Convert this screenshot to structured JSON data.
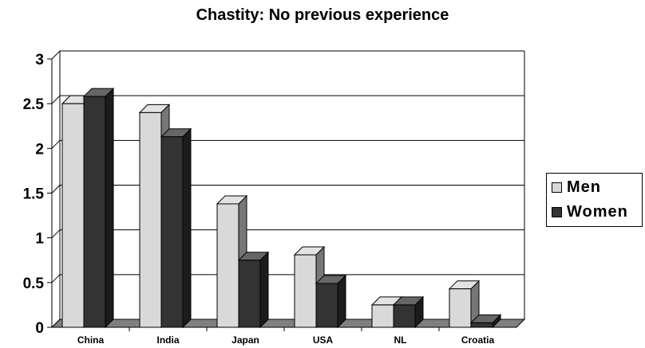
{
  "chart_data": {
    "type": "bar",
    "title": "Chastity: No previous experience",
    "categories": [
      "China",
      "India",
      "Japan",
      "USA",
      "NL",
      "Croatia"
    ],
    "series": [
      {
        "name": "Men",
        "values": [
          2.5,
          2.4,
          1.38,
          0.81,
          0.25,
          0.43
        ],
        "color": "#d9d9d9"
      },
      {
        "name": "Women",
        "values": [
          2.58,
          2.13,
          0.75,
          0.49,
          0.25,
          0.05
        ],
        "color": "#333333"
      }
    ],
    "ylim": [
      0,
      3
    ],
    "yticks": [
      "0",
      "0.5",
      "1",
      "1.5",
      "2",
      "2.5",
      "3"
    ],
    "xlabel": "",
    "ylabel": "",
    "grid": true,
    "legend_position": "right",
    "style": "3d-clustered-columns"
  }
}
